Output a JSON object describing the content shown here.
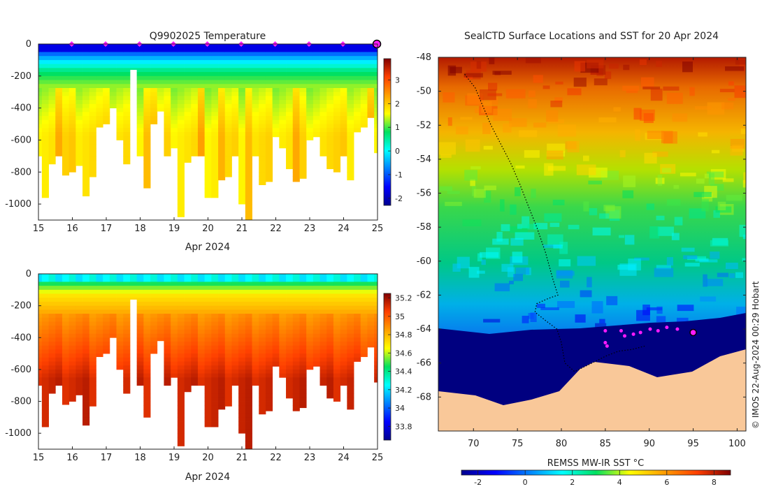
{
  "chart_data": [
    {
      "type": "heatmap",
      "title": "Q9902025  Temperature",
      "xlabel": "Apr 2024",
      "ylabel": "",
      "xlim": [
        15,
        25
      ],
      "ylim": [
        -1100,
        0
      ],
      "x_ticks": [
        "15",
        "16",
        "17",
        "18",
        "19",
        "20",
        "21",
        "22",
        "23",
        "24",
        "25"
      ],
      "y_ticks": [
        "0",
        "-200",
        "-400",
        "-600",
        "-800",
        "-1000"
      ],
      "colorbar_range": [
        -2.3,
        3.9
      ],
      "colorbar_ticks": [
        "3",
        "2",
        "1",
        "0",
        "-1",
        "-2"
      ],
      "profile_times": [
        15.0,
        15.2,
        15.4,
        15.6,
        15.8,
        16.0,
        16.2,
        16.4,
        16.6,
        16.8,
        17.0,
        17.2,
        17.4,
        17.6,
        17.8,
        18.0,
        18.2,
        18.4,
        18.6,
        18.8,
        19.0,
        19.2,
        19.4,
        19.6,
        19.8,
        20.0,
        20.2,
        20.4,
        20.6,
        20.8,
        21.0,
        21.2,
        21.4,
        21.6,
        21.8,
        22.0,
        22.2,
        22.4,
        22.6,
        22.8,
        23.0,
        23.2,
        23.4,
        23.6,
        23.8,
        24.0,
        24.2,
        24.4,
        24.6,
        24.8,
        25.0
      ],
      "profile_max_depth": [
        700,
        960,
        750,
        700,
        820,
        800,
        760,
        950,
        830,
        520,
        500,
        400,
        600,
        750,
        160,
        700,
        900,
        500,
        420,
        700,
        650,
        1080,
        740,
        700,
        700,
        960,
        960,
        850,
        830,
        700,
        1000,
        1100,
        700,
        880,
        860,
        580,
        650,
        780,
        860,
        840,
        600,
        580,
        700,
        780,
        800,
        700,
        850,
        550,
        520,
        460,
        680
      ],
      "surface_markers_day": [
        16,
        17,
        18,
        19,
        20,
        21,
        22,
        23,
        24,
        25
      ]
    },
    {
      "type": "heatmap",
      "title": "",
      "xlabel": "Apr 2024",
      "ylabel": "",
      "xlim": [
        15,
        25
      ],
      "ylim": [
        -1100,
        0
      ],
      "x_ticks": [
        "15",
        "16",
        "17",
        "18",
        "19",
        "20",
        "21",
        "22",
        "23",
        "24",
        "25"
      ],
      "y_ticks": [
        "0",
        "-200",
        "-400",
        "-600",
        "-800",
        "-1000"
      ],
      "colorbar_range": [
        33.65,
        35.25
      ],
      "colorbar_ticks": [
        "35.2",
        "35",
        "34.8",
        "34.6",
        "34.4",
        "34.2",
        "34",
        "33.8"
      ]
    },
    {
      "type": "heatmap",
      "title": "SealCTD Surface Locations and SST for 20 Apr 2024",
      "xlabel": "",
      "ylabel": "",
      "xlim": [
        66,
        101
      ],
      "ylim": [
        -70,
        -48
      ],
      "x_ticks": [
        "70",
        "75",
        "80",
        "85",
        "90",
        "95",
        "100"
      ],
      "y_ticks": [
        "-48",
        "-50",
        "-52",
        "-54",
        "-56",
        "-58",
        "-60",
        "-62",
        "-64",
        "-66",
        "-68"
      ],
      "colorbar_label": "REMSS MW-IR SST °C",
      "colorbar_range": [
        -2.7,
        8.7
      ],
      "colorbar_ticks": [
        "-2",
        "0",
        "2",
        "4",
        "6",
        "8"
      ],
      "track": [
        [
          69.0,
          -49.0
        ],
        [
          70.2,
          -49.8
        ],
        [
          71.0,
          -50.8
        ],
        [
          72.0,
          -52.0
        ],
        [
          73.2,
          -53.2
        ],
        [
          74.3,
          -54.3
        ],
        [
          75.3,
          -55.5
        ],
        [
          76.2,
          -56.7
        ],
        [
          77.2,
          -58.0
        ],
        [
          78.2,
          -59.5
        ],
        [
          79.0,
          -61.0
        ],
        [
          79.6,
          -62.0
        ],
        [
          78.5,
          -62.2
        ],
        [
          77.2,
          -62.5
        ],
        [
          77.0,
          -63.0
        ],
        [
          78.2,
          -63.5
        ],
        [
          79.5,
          -64.0
        ],
        [
          80.0,
          -64.8
        ],
        [
          80.4,
          -66.0
        ],
        [
          81.5,
          -66.5
        ],
        [
          83.5,
          -66.0
        ],
        [
          85.0,
          -65.6
        ],
        [
          86.5,
          -65.3
        ],
        [
          88.0,
          -65.2
        ],
        [
          89.5,
          -65.0
        ]
      ],
      "surface_locations": [
        [
          85.0,
          -64.1
        ],
        [
          85.0,
          -64.8
        ],
        [
          85.2,
          -65.0
        ],
        [
          86.8,
          -64.1
        ],
        [
          87.2,
          -64.4
        ],
        [
          88.2,
          -64.3
        ],
        [
          89.0,
          -64.2
        ],
        [
          90.1,
          -64.0
        ],
        [
          91.0,
          -64.1
        ],
        [
          92.0,
          -63.9
        ],
        [
          93.2,
          -64.0
        ],
        [
          95.0,
          -64.2
        ]
      ],
      "latest_location": [
        95.0,
        -64.2
      ]
    }
  ],
  "colors": {
    "marker_magenta": "#ff1aff",
    "land": "#f9c899",
    "axis": "#222222"
  },
  "watermark": "© IMOS 22-Aug-2024 00:29 Hobart"
}
